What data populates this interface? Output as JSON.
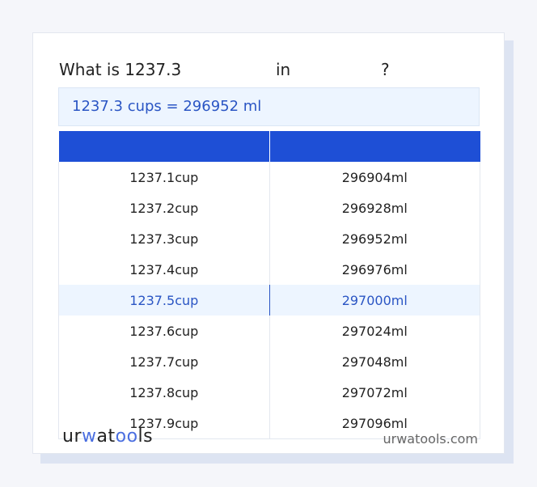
{
  "title": {
    "prefix": "What is 1237.3",
    "in": "in",
    "q": "?"
  },
  "result": "1237.3 cups = 296952 ml",
  "table": {
    "headers": [
      "",
      ""
    ],
    "rows": [
      [
        "1237.1cup",
        "296904ml"
      ],
      [
        "1237.2cup",
        "296928ml"
      ],
      [
        "1237.3cup",
        "296952ml"
      ],
      [
        "1237.4cup",
        "296976ml"
      ],
      [
        "1237.5cup",
        "297000ml"
      ],
      [
        "1237.6cup",
        "297024ml"
      ],
      [
        "1237.7cup",
        "297048ml"
      ],
      [
        "1237.8cup",
        "297072ml"
      ],
      [
        "1237.9cup",
        "297096ml"
      ]
    ],
    "highlighted_row": 4
  },
  "footer": {
    "logo": "urwatools",
    "site": "urwatools.com"
  },
  "colors": {
    "accent": "#1e4fd6",
    "highlight_bg": "#edf5ff",
    "highlight_text": "#2a55c4"
  }
}
